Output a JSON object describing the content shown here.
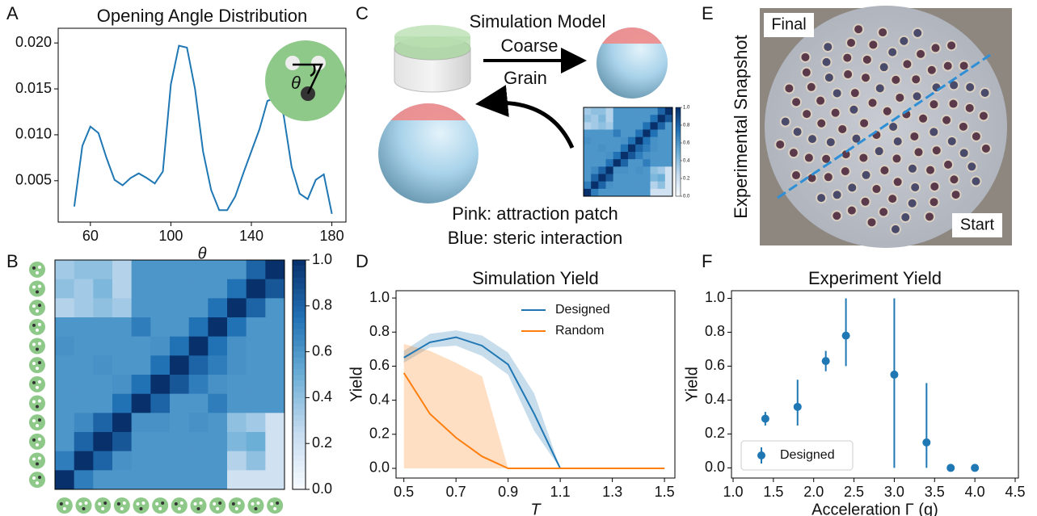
{
  "panel_labels": [
    "A",
    "B",
    "C",
    "D",
    "E",
    "F"
  ],
  "chart_data": [
    {
      "type": "line",
      "title": "Opening Angle Distribution",
      "xlabel": "θ",
      "inset_label": "θ",
      "color": "#1f77b4",
      "x": [
        52,
        56,
        60,
        64,
        68,
        72,
        76,
        80,
        84,
        88,
        92,
        96,
        100,
        104,
        108,
        112,
        116,
        120,
        124,
        128,
        132,
        136,
        140,
        144,
        148,
        152,
        156,
        160,
        164,
        168,
        172,
        176,
        180
      ],
      "values": [
        0.0022,
        0.0088,
        0.0109,
        0.0102,
        0.0075,
        0.0051,
        0.0045,
        0.0053,
        0.0058,
        0.0053,
        0.0047,
        0.006,
        0.0155,
        0.0197,
        0.0195,
        0.015,
        0.0082,
        0.004,
        0.0018,
        0.0018,
        0.0033,
        0.0058,
        0.0082,
        0.0106,
        0.0137,
        0.014,
        0.0122,
        0.0065,
        0.0036,
        0.003,
        0.0051,
        0.0057,
        0.0014
      ],
      "xlim": [
        44,
        187
      ],
      "ylim": [
        0.0005,
        0.0216
      ],
      "xticks": [
        60,
        100,
        140,
        180
      ],
      "yticks": [
        0.005,
        {
          "value": 0.01,
          "label": "0.010"
        },
        0.015,
        {
          "value": 0.02,
          "label": "0.020"
        }
      ]
    },
    {
      "type": "heatmap",
      "colormap": [
        "#f7fbff",
        "#c6dbef",
        "#6baed6",
        "#2171b5",
        "#08306b"
      ],
      "clim": [
        0,
        1
      ],
      "cticks": [
        {
          "value": 0,
          "label": "0.0"
        },
        0.2,
        0.4,
        0.6,
        0.8,
        {
          "value": 1,
          "label": "1.0"
        }
      ],
      "z": [
        [
          0.35,
          0.4,
          0.4,
          0.3,
          0.6,
          0.6,
          0.6,
          0.6,
          0.6,
          0.6,
          0.8,
          1.0
        ],
        [
          0.4,
          0.35,
          0.45,
          0.3,
          0.6,
          0.6,
          0.6,
          0.6,
          0.6,
          0.75,
          1.0,
          0.85
        ],
        [
          0.3,
          0.35,
          0.4,
          0.35,
          0.6,
          0.6,
          0.6,
          0.6,
          0.75,
          1.0,
          0.8,
          0.6
        ],
        [
          0.6,
          0.6,
          0.6,
          0.6,
          0.7,
          0.6,
          0.6,
          0.75,
          1.0,
          0.75,
          0.6,
          0.6
        ],
        [
          0.62,
          0.6,
          0.6,
          0.6,
          0.6,
          0.62,
          0.75,
          1.0,
          0.75,
          0.62,
          0.6,
          0.6
        ],
        [
          0.6,
          0.6,
          0.62,
          0.6,
          0.6,
          0.75,
          1.0,
          0.8,
          0.7,
          0.62,
          0.6,
          0.6
        ],
        [
          0.6,
          0.6,
          0.6,
          0.62,
          0.75,
          1.0,
          0.85,
          0.7,
          0.62,
          0.6,
          0.6,
          0.6
        ],
        [
          0.6,
          0.6,
          0.6,
          0.75,
          1.0,
          0.8,
          0.6,
          0.6,
          0.7,
          0.6,
          0.6,
          0.6
        ],
        [
          0.6,
          0.65,
          0.8,
          1.0,
          0.62,
          0.62,
          0.6,
          0.62,
          0.6,
          0.4,
          0.35,
          0.2
        ],
        [
          0.6,
          0.8,
          1.0,
          0.85,
          0.6,
          0.6,
          0.6,
          0.6,
          0.6,
          0.45,
          0.5,
          0.2
        ],
        [
          0.7,
          1.0,
          0.8,
          0.62,
          0.6,
          0.6,
          0.6,
          0.6,
          0.6,
          0.3,
          0.4,
          0.2
        ],
        [
          1.0,
          0.7,
          0.6,
          0.6,
          0.6,
          0.6,
          0.6,
          0.6,
          0.6,
          0.2,
          0.2,
          0.2
        ]
      ]
    },
    {
      "type": "band_line",
      "title": "Simulation Yield",
      "xlabel": "T",
      "ylabel": "Yield",
      "legend": "upper right",
      "x": [
        0.5,
        0.6,
        0.7,
        0.8,
        0.9,
        1.0,
        1.1,
        1.2,
        1.3,
        1.4,
        1.5
      ],
      "series": [
        {
          "name": "Designed",
          "color": "#1f77b4",
          "values": [
            0.65,
            0.74,
            0.77,
            0.72,
            0.61,
            0.32,
            0,
            0,
            0,
            0,
            0
          ],
          "band_low": [
            0.62,
            0.71,
            0.72,
            0.66,
            0.55,
            0.22,
            0,
            0,
            0,
            0,
            0
          ],
          "band_high": [
            0.69,
            0.79,
            0.81,
            0.78,
            0.68,
            0.44,
            0,
            0,
            0,
            0,
            0
          ]
        },
        {
          "name": "Random",
          "color": "#ff7f0e",
          "values": [
            0.56,
            0.32,
            0.18,
            0.07,
            0,
            0,
            0,
            0,
            0,
            0,
            0
          ],
          "band_low": [
            0,
            0,
            0,
            0,
            0,
            0,
            0,
            0,
            0,
            0,
            0
          ],
          "band_high": [
            0.73,
            0.69,
            0.62,
            0.54,
            0,
            0,
            0,
            0,
            0,
            0,
            0
          ]
        }
      ],
      "xlim": [
        0.47,
        1.54
      ],
      "ylim": [
        -0.057,
        1.043
      ],
      "xticks": [
        0.5,
        0.7,
        0.9,
        1.1,
        1.3,
        1.5
      ],
      "yticks": [
        {
          "value": 0,
          "label": "0.0"
        },
        0.2,
        0.4,
        0.6,
        0.8,
        {
          "value": 1,
          "label": "1.0"
        }
      ]
    },
    {
      "type": "errorbar",
      "title": "Experiment Yield",
      "xlabel": "Acceleration Γ (g)",
      "ylabel": "Yield",
      "legend": "lower left",
      "series": [
        {
          "name": "Designed",
          "color": "#1f77b4",
          "x": [
            1.4,
            1.8,
            2.15,
            2.4,
            3.0,
            3.4,
            3.7,
            4.0
          ],
          "values": [
            0.29,
            0.36,
            0.63,
            0.78,
            0.55,
            0.15,
            0,
            0
          ],
          "err_low": [
            0.04,
            0.11,
            0.06,
            0.18,
            0.55,
            0.15,
            0,
            0
          ],
          "err_high": [
            0.04,
            0.16,
            0.06,
            0.22,
            0.45,
            0.35,
            0,
            0
          ]
        }
      ],
      "xlim": [
        0.98,
        4.54
      ],
      "ylim": [
        -0.06,
        1.045
      ],
      "xticks": [
        {
          "value": 1,
          "label": "1.0"
        },
        1.5,
        {
          "value": 2,
          "label": "2.0"
        },
        2.5,
        {
          "value": 3,
          "label": "3.0"
        },
        3.5,
        {
          "value": 4,
          "label": "4.0"
        },
        4.5
      ],
      "yticks": [
        {
          "value": 0,
          "label": "0.0"
        },
        0.2,
        0.4,
        0.6,
        0.8,
        {
          "value": 1,
          "label": "1.0"
        }
      ]
    }
  ],
  "diagram": {
    "title": "Simulation Model",
    "arrow_top": "Coarse",
    "arrow_bottom": "Grain",
    "caption": [
      "Pink: attraction patch",
      "Blue: steric interaction"
    ]
  },
  "photo": {
    "title": "Experimental Snapshot",
    "top_label": "Final",
    "bottom_label": "Start"
  }
}
